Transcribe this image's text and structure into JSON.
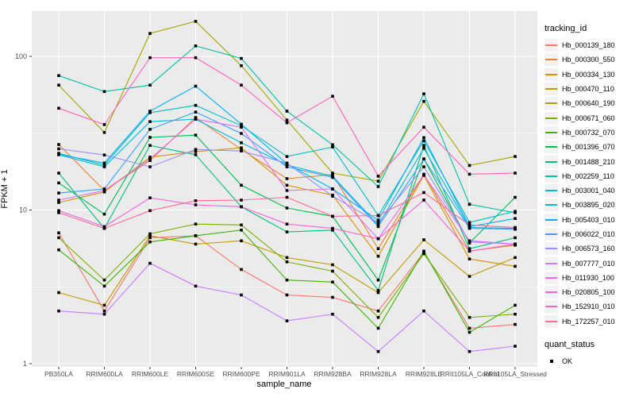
{
  "chart_data": {
    "type": "line",
    "title": "",
    "xlabel": "sample_name",
    "ylabel": "FPKM + 1",
    "y_scale": "log10",
    "y_ticks": [
      1,
      10,
      100
    ],
    "y_minor_ticks": [
      3.162,
      31.62
    ],
    "ylim": [
      0.95,
      200
    ],
    "grid": true,
    "panel_bg": "#EBEBEB",
    "grid_color": "#FFFFFF",
    "tick_label_color": "#4D4D4D",
    "point_shape": "square",
    "point_color": "#000000",
    "legend_position": "right",
    "categories": [
      "PB350LA",
      "RRIM600LA",
      "RRIM600LE",
      "RRIM600SE",
      "RRIM600PE",
      "RRIM901LA",
      "RRIM928BA",
      "RRIM928LA",
      "RRIM928LE",
      "RRII105LA_Control",
      "RRII105LA_Stressed"
    ],
    "series": [
      {
        "name": "Hb_000139_180",
        "color": "#F8766D",
        "values": [
          7.1,
          2.2,
          6.6,
          6.8,
          4.1,
          2.8,
          2.7,
          2.2,
          5.3,
          1.7,
          1.8
        ]
      },
      {
        "name": "Hb_000300_550",
        "color": "#EA8331",
        "values": [
          26.7,
          13.4,
          21.0,
          40.0,
          24.8,
          16.0,
          17.0,
          5.6,
          17.1,
          5.4,
          5.9
        ]
      },
      {
        "name": "Hb_000334_130",
        "color": "#D89000",
        "values": [
          11.2,
          13.1,
          22.1,
          24.0,
          25.4,
          14.5,
          12.5,
          5.0,
          16.8,
          4.8,
          4.3
        ]
      },
      {
        "name": "Hb_000470_110",
        "color": "#C09B00",
        "values": [
          2.9,
          2.4,
          6.8,
          6.0,
          6.3,
          4.9,
          4.4,
          2.9,
          6.4,
          3.7,
          4.9
        ]
      },
      {
        "name": "Hb_000640_190",
        "color": "#A3A500",
        "values": [
          65,
          32,
          141,
          169,
          87,
          38.5,
          17.4,
          15.4,
          51,
          19.5,
          22.3
        ]
      },
      {
        "name": "Hb_000671_060",
        "color": "#7CAE00",
        "values": [
          6.6,
          3.5,
          7.0,
          8.1,
          8.0,
          4.6,
          4.0,
          2.0,
          5.2,
          2.0,
          2.1
        ]
      },
      {
        "name": "Hb_000732_070",
        "color": "#39B600",
        "values": [
          5.5,
          3.2,
          6.2,
          6.8,
          7.4,
          3.5,
          3.4,
          1.7,
          5.4,
          1.6,
          2.4
        ]
      },
      {
        "name": "Hb_001396_070",
        "color": "#00BB4E",
        "values": [
          15.0,
          9.4,
          29.7,
          30.7,
          14.5,
          10.3,
          9.1,
          3.5,
          21.5,
          6.1,
          12.1
        ]
      },
      {
        "name": "Hb_001488_210",
        "color": "#00BF7D",
        "values": [
          17.4,
          7.6,
          26.3,
          22.9,
          10.5,
          7.2,
          7.4,
          3.0,
          26.3,
          5.6,
          6.6
        ]
      },
      {
        "name": "Hb_002259_110",
        "color": "#00C1A3",
        "values": [
          75,
          59,
          65,
          117,
          97,
          44,
          26.6,
          14.2,
          57,
          10.9,
          9.6
        ]
      },
      {
        "name": "Hb_003001_040",
        "color": "#00BFC4",
        "values": [
          23.4,
          19.6,
          43,
          48,
          35.4,
          22.3,
          25.7,
          9.2,
          28.2,
          8.3,
          9.8
        ]
      },
      {
        "name": "Hb_003895_020",
        "color": "#00BAE0",
        "values": [
          22.9,
          19.1,
          37.6,
          39,
          27.4,
          19.6,
          16.6,
          8.0,
          25.2,
          7.7,
          7.6
        ]
      },
      {
        "name": "Hb_005403_010",
        "color": "#00B0F6",
        "values": [
          23.0,
          20.2,
          44,
          64,
          36.2,
          20.0,
          13.7,
          8.6,
          29.6,
          7.8,
          8.8
        ]
      },
      {
        "name": "Hb_006022_010",
        "color": "#35A2FF",
        "values": [
          12.9,
          13.7,
          33.5,
          43.4,
          31.5,
          19.1,
          16.3,
          7.8,
          21.5,
          7.6,
          7.5
        ]
      },
      {
        "name": "Hb_006573_160",
        "color": "#9590FF",
        "values": [
          25.0,
          22.8,
          19.1,
          24.8,
          24.2,
          20.2,
          12.3,
          8.3,
          19.1,
          6.2,
          6.0
        ]
      },
      {
        "name": "Hb_007777_010",
        "color": "#C77CFF",
        "values": [
          2.2,
          2.1,
          4.5,
          3.2,
          2.8,
          1.9,
          2.1,
          1.2,
          2.2,
          1.2,
          1.3
        ]
      },
      {
        "name": "Hb_011930_100",
        "color": "#E76BF3",
        "values": [
          11.6,
          13.4,
          21.5,
          39.0,
          34.6,
          13.4,
          13.7,
          6.5,
          16.9,
          6.3,
          6.0
        ]
      },
      {
        "name": "Hb_020805_100",
        "color": "#FA62DB",
        "values": [
          9.9,
          7.8,
          12.0,
          10.8,
          10.5,
          8.1,
          7.6,
          6.5,
          11.6,
          5.4,
          6.0
        ]
      },
      {
        "name": "Hb_152910_010",
        "color": "#FF62BC",
        "values": [
          46,
          36,
          98,
          98,
          65,
          37,
          55,
          16.6,
          34.6,
          17.1,
          17.4
        ]
      },
      {
        "name": "Hb_172257_010",
        "color": "#FF6A98",
        "values": [
          9.6,
          7.6,
          9.9,
          11.5,
          11.6,
          12.1,
          9.1,
          9.2,
          13.0,
          8.0,
          7.7
        ]
      }
    ],
    "legend": {
      "color_title": "tracking_id",
      "shape_title": "quant_status",
      "shape_entries": [
        {
          "label": "OK"
        }
      ]
    }
  }
}
